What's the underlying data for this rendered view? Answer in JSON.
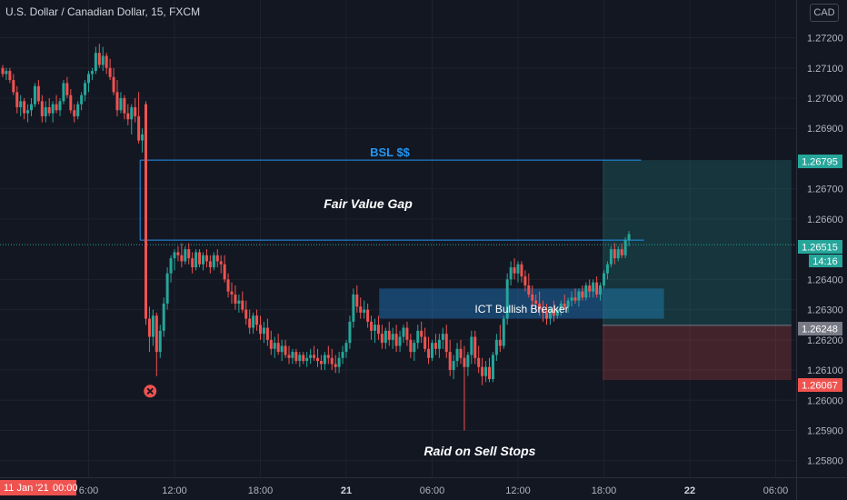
{
  "header": {
    "title": "U.S. Dollar / Canadian Dollar, 15, FXCM",
    "currency_button": "CAD"
  },
  "chart_data": {
    "type": "candlestick",
    "symbol": "U.S. Dollar / Canadian Dollar",
    "interval": "15",
    "source": "FXCM",
    "currency": "CAD",
    "ylim": [
      1.25745,
      1.27325
    ],
    "y_ticks": [
      "1.27200",
      "1.27100",
      "1.27000",
      "1.26900",
      "1.26700",
      "1.26600",
      "1.26400",
      "1.26300",
      "1.26200",
      "1.26100",
      "1.26000",
      "1.25900",
      "1.25800"
    ],
    "x_ticks": [
      {
        "label": "6:00",
        "x_hour": 6,
        "bold": false
      },
      {
        "label": "12:00",
        "x_hour": 12,
        "bold": false
      },
      {
        "label": "18:00",
        "x_hour": 18,
        "bold": false
      },
      {
        "label": "21",
        "x_hour": 24,
        "bold": true
      },
      {
        "label": "06:00",
        "x_hour": 30,
        "bold": false
      },
      {
        "label": "12:00",
        "x_hour": 36,
        "bold": false
      },
      {
        "label": "18:00",
        "x_hour": 42,
        "bold": false
      },
      {
        "label": "22",
        "x_hour": 48,
        "bold": true
      },
      {
        "label": "06:00",
        "x_hour": 54,
        "bold": false
      }
    ],
    "x_start_label": "11 Jan '21",
    "x_start_time": "00:00",
    "last_price": "1.26515",
    "countdown": "14:16",
    "price_badges": [
      {
        "label": "1.26795",
        "value": 1.26795,
        "color": "#26a69a"
      },
      {
        "label": "1.26248",
        "value": 1.26248,
        "color": "#787b86"
      },
      {
        "label": "1.26067",
        "value": 1.26067,
        "color": "#ef5350"
      }
    ],
    "levels": [
      {
        "value": 1.26795,
        "from_hour": 9.6,
        "to_hour": 44.6,
        "label": "BSL $$"
      },
      {
        "value": 1.2653,
        "from_hour": 9.6,
        "to_hour": 44.8,
        "label": "Fair Value Gap"
      }
    ],
    "zones": [
      {
        "label": "ICT Bullish Breaker",
        "top": 1.2637,
        "bottom": 1.2627,
        "from_hour": 26.3,
        "to_hour": 46.2
      },
      {
        "label": "",
        "kind": "target",
        "top": 1.26795,
        "bottom": 1.26248,
        "from_hour": 41.9,
        "to_hour": 55.1
      },
      {
        "label": "",
        "kind": "stop",
        "top": 1.26248,
        "bottom": 1.26067,
        "from_hour": 41.9,
        "to_hour": 55.1
      }
    ],
    "annotations": [
      {
        "label": "BSL $$"
      },
      {
        "label": "Fair Value Gap"
      },
      {
        "label": "Raid on Sell Stops"
      }
    ],
    "raid_marker": {
      "x_hour": 10.3,
      "value": 1.2603
    },
    "candles": [
      [
        0.0,
        1.271,
        1.2711,
        1.2707,
        1.2708
      ],
      [
        0.25,
        1.2708,
        1.271,
        1.2706,
        1.2709
      ],
      [
        0.5,
        1.2709,
        1.271,
        1.2705,
        1.2706
      ],
      [
        0.75,
        1.2706,
        1.2708,
        1.2701,
        1.2702
      ],
      [
        1.0,
        1.2702,
        1.2704,
        1.2695,
        1.2697
      ],
      [
        1.25,
        1.2697,
        1.2701,
        1.2694,
        1.2699
      ],
      [
        1.5,
        1.2699,
        1.27,
        1.2693,
        1.2695
      ],
      [
        1.75,
        1.2695,
        1.2698,
        1.2692,
        1.2696
      ],
      [
        2.0,
        1.2696,
        1.27,
        1.2694,
        1.2698
      ],
      [
        2.25,
        1.2698,
        1.2705,
        1.2697,
        1.2704
      ],
      [
        2.5,
        1.2704,
        1.2706,
        1.2698,
        1.2699
      ],
      [
        2.75,
        1.2699,
        1.2701,
        1.2692,
        1.2694
      ],
      [
        3.0,
        1.2694,
        1.2699,
        1.2692,
        1.2697
      ],
      [
        3.25,
        1.2697,
        1.27,
        1.2694,
        1.2695
      ],
      [
        3.5,
        1.2695,
        1.2699,
        1.2692,
        1.2698
      ],
      [
        3.75,
        1.2698,
        1.2701,
        1.2695,
        1.2696
      ],
      [
        4.0,
        1.2696,
        1.27,
        1.2694,
        1.2699
      ],
      [
        4.25,
        1.2699,
        1.2706,
        1.2698,
        1.2705
      ],
      [
        4.5,
        1.2705,
        1.2707,
        1.27,
        1.2701
      ],
      [
        4.75,
        1.2701,
        1.2703,
        1.2695,
        1.2696
      ],
      [
        5.0,
        1.2696,
        1.2698,
        1.2692,
        1.2694
      ],
      [
        5.25,
        1.2694,
        1.2699,
        1.2693,
        1.2698
      ],
      [
        5.5,
        1.2698,
        1.2702,
        1.2696,
        1.2701
      ],
      [
        5.75,
        1.2701,
        1.2706,
        1.2699,
        1.2705
      ],
      [
        6.0,
        1.2705,
        1.2709,
        1.2702,
        1.2708
      ],
      [
        6.25,
        1.2708,
        1.271,
        1.2706,
        1.2709
      ],
      [
        6.5,
        1.2709,
        1.2717,
        1.2708,
        1.2715
      ],
      [
        6.75,
        1.2715,
        1.2718,
        1.271,
        1.2711
      ],
      [
        7.0,
        1.2711,
        1.2717,
        1.2709,
        1.2714
      ],
      [
        7.25,
        1.2714,
        1.2715,
        1.2708,
        1.271
      ],
      [
        7.5,
        1.271,
        1.2713,
        1.2706,
        1.2707
      ],
      [
        7.75,
        1.2707,
        1.271,
        1.2701,
        1.2702
      ],
      [
        8.0,
        1.2702,
        1.2706,
        1.2694,
        1.2696
      ],
      [
        8.25,
        1.2696,
        1.2702,
        1.2695,
        1.27
      ],
      [
        8.5,
        1.27,
        1.2701,
        1.2693,
        1.2695
      ],
      [
        8.75,
        1.2695,
        1.2698,
        1.2691,
        1.2693
      ],
      [
        9.0,
        1.2693,
        1.2698,
        1.2688,
        1.2697
      ],
      [
        9.25,
        1.2697,
        1.27,
        1.2692,
        1.2694
      ],
      [
        9.5,
        1.2694,
        1.2702,
        1.2685,
        1.2686
      ],
      [
        9.75,
        1.2686,
        1.269,
        1.2682,
        1.2688
      ],
      [
        10.0,
        1.2698,
        1.2699,
        1.2625,
        1.2627
      ],
      [
        10.25,
        1.2627,
        1.2631,
        1.2616,
        1.2621
      ],
      [
        10.5,
        1.2621,
        1.263,
        1.2618,
        1.2628
      ],
      [
        10.75,
        1.2628,
        1.2629,
        1.2608,
        1.2616
      ],
      [
        11.0,
        1.2616,
        1.2625,
        1.2614,
        1.2623
      ],
      [
        11.25,
        1.2623,
        1.2634,
        1.2621,
        1.2632
      ],
      [
        11.5,
        1.2632,
        1.2644,
        1.263,
        1.2642
      ],
      [
        11.75,
        1.2642,
        1.2648,
        1.2639,
        1.2647
      ],
      [
        12.0,
        1.2647,
        1.265,
        1.2643,
        1.2649
      ],
      [
        12.25,
        1.2649,
        1.2651,
        1.2646,
        1.2648
      ],
      [
        12.5,
        1.2648,
        1.2652,
        1.2644,
        1.2646
      ],
      [
        12.75,
        1.2646,
        1.2651,
        1.2645,
        1.265
      ],
      [
        13.0,
        1.265,
        1.2652,
        1.2645,
        1.2647
      ],
      [
        13.25,
        1.2647,
        1.2649,
        1.2642,
        1.2644
      ],
      [
        13.5,
        1.2644,
        1.265,
        1.2643,
        1.2649
      ],
      [
        13.75,
        1.2649,
        1.265,
        1.2644,
        1.2645
      ],
      [
        14.0,
        1.2645,
        1.2649,
        1.2643,
        1.2648
      ],
      [
        14.25,
        1.2648,
        1.265,
        1.2644,
        1.2646
      ],
      [
        14.5,
        1.2646,
        1.2648,
        1.2642,
        1.2644
      ],
      [
        14.75,
        1.2644,
        1.2649,
        1.2643,
        1.2648
      ],
      [
        15.0,
        1.2648,
        1.265,
        1.2644,
        1.2646
      ],
      [
        15.25,
        1.2646,
        1.2648,
        1.2642,
        1.2645
      ],
      [
        15.5,
        1.2645,
        1.2648,
        1.2639,
        1.264
      ],
      [
        15.75,
        1.264,
        1.2642,
        1.2634,
        1.2636
      ],
      [
        16.0,
        1.2636,
        1.2639,
        1.2632,
        1.2635
      ],
      [
        16.25,
        1.2635,
        1.2638,
        1.263,
        1.2632
      ],
      [
        16.5,
        1.2632,
        1.2635,
        1.2629,
        1.2633
      ],
      [
        16.75,
        1.2633,
        1.2636,
        1.2629,
        1.263
      ],
      [
        17.0,
        1.263,
        1.2633,
        1.2625,
        1.2627
      ],
      [
        17.25,
        1.2627,
        1.263,
        1.2622,
        1.2624
      ],
      [
        17.5,
        1.2624,
        1.2629,
        1.2622,
        1.2628
      ],
      [
        17.75,
        1.2628,
        1.263,
        1.2623,
        1.2625
      ],
      [
        18.0,
        1.2625,
        1.2628,
        1.262,
        1.2622
      ],
      [
        18.25,
        1.2622,
        1.2626,
        1.2619,
        1.2624
      ],
      [
        18.5,
        1.2624,
        1.2627,
        1.2618,
        1.262
      ],
      [
        18.75,
        1.262,
        1.2623,
        1.2615,
        1.2617
      ],
      [
        19.0,
        1.2617,
        1.2621,
        1.2614,
        1.2619
      ],
      [
        19.25,
        1.2619,
        1.2622,
        1.2615,
        1.2616
      ],
      [
        19.5,
        1.2616,
        1.262,
        1.2613,
        1.2618
      ],
      [
        19.75,
        1.2618,
        1.262,
        1.2614,
        1.2615
      ],
      [
        20.0,
        1.2615,
        1.2618,
        1.2612,
        1.2614
      ],
      [
        20.25,
        1.2614,
        1.2617,
        1.2612,
        1.2616
      ],
      [
        20.5,
        1.2616,
        1.2617,
        1.2612,
        1.2613
      ],
      [
        20.75,
        1.2613,
        1.2616,
        1.2611,
        1.2615
      ],
      [
        21.0,
        1.2615,
        1.2616,
        1.2612,
        1.2613
      ],
      [
        21.25,
        1.2613,
        1.2616,
        1.2611,
        1.2614
      ],
      [
        21.5,
        1.2614,
        1.2617,
        1.2612,
        1.2615
      ],
      [
        21.75,
        1.2615,
        1.2618,
        1.2613,
        1.2614
      ],
      [
        22.0,
        1.2614,
        1.2617,
        1.2611,
        1.2613
      ],
      [
        22.25,
        1.2613,
        1.2615,
        1.261,
        1.2612
      ],
      [
        22.5,
        1.2612,
        1.2616,
        1.261,
        1.2615
      ],
      [
        22.75,
        1.2615,
        1.2618,
        1.2612,
        1.2614
      ],
      [
        23.0,
        1.2614,
        1.2617,
        1.261,
        1.2612
      ],
      [
        23.25,
        1.2612,
        1.2615,
        1.2609,
        1.2611
      ],
      [
        23.5,
        1.2611,
        1.2616,
        1.2609,
        1.2614
      ],
      [
        23.75,
        1.2614,
        1.2618,
        1.2612,
        1.2616
      ],
      [
        24.0,
        1.2616,
        1.262,
        1.2614,
        1.2619
      ],
      [
        24.25,
        1.2619,
        1.2628,
        1.2617,
        1.2626
      ],
      [
        24.5,
        1.2626,
        1.2637,
        1.2624,
        1.2635
      ],
      [
        24.75,
        1.2635,
        1.2638,
        1.2629,
        1.2631
      ],
      [
        25.0,
        1.2631,
        1.2634,
        1.2627,
        1.2629
      ],
      [
        25.25,
        1.2629,
        1.2633,
        1.2627,
        1.263
      ],
      [
        25.5,
        1.263,
        1.2632,
        1.2624,
        1.2626
      ],
      [
        25.75,
        1.2626,
        1.2628,
        1.262,
        1.2623
      ],
      [
        26.0,
        1.2623,
        1.2627,
        1.2619,
        1.2625
      ],
      [
        26.25,
        1.2625,
        1.2628,
        1.262,
        1.2622
      ],
      [
        26.5,
        1.2622,
        1.2625,
        1.2617,
        1.2619
      ],
      [
        26.75,
        1.2619,
        1.2624,
        1.2617,
        1.2623
      ],
      [
        27.0,
        1.2623,
        1.2626,
        1.2618,
        1.262
      ],
      [
        27.25,
        1.262,
        1.2624,
        1.2617,
        1.2622
      ],
      [
        27.5,
        1.2622,
        1.2625,
        1.2616,
        1.2618
      ],
      [
        27.75,
        1.2618,
        1.2623,
        1.2616,
        1.2621
      ],
      [
        28.0,
        1.2621,
        1.2625,
        1.2619,
        1.2624
      ],
      [
        28.25,
        1.2624,
        1.2626,
        1.2618,
        1.262
      ],
      [
        28.5,
        1.262,
        1.2622,
        1.2614,
        1.2616
      ],
      [
        28.75,
        1.2616,
        1.262,
        1.2613,
        1.2619
      ],
      [
        29.0,
        1.2619,
        1.2625,
        1.2617,
        1.2623
      ],
      [
        29.25,
        1.2623,
        1.2626,
        1.2619,
        1.2621
      ],
      [
        29.5,
        1.2621,
        1.2624,
        1.2616,
        1.2617
      ],
      [
        29.75,
        1.2617,
        1.2621,
        1.2612,
        1.2614
      ],
      [
        30.0,
        1.2614,
        1.262,
        1.2613,
        1.2619
      ],
      [
        30.25,
        1.2619,
        1.2622,
        1.2615,
        1.2617
      ],
      [
        30.5,
        1.2617,
        1.2622,
        1.2614,
        1.262
      ],
      [
        30.75,
        1.262,
        1.2624,
        1.2617,
        1.2622
      ],
      [
        31.0,
        1.2622,
        1.2625,
        1.2614,
        1.2616
      ],
      [
        31.25,
        1.2616,
        1.262,
        1.2608,
        1.261
      ],
      [
        31.5,
        1.261,
        1.2615,
        1.2607,
        1.2613
      ],
      [
        31.75,
        1.2613,
        1.2619,
        1.2611,
        1.2617
      ],
      [
        32.0,
        1.2617,
        1.262,
        1.2612,
        1.2614
      ],
      [
        32.25,
        1.2614,
        1.2618,
        1.259,
        1.2611
      ],
      [
        32.5,
        1.2611,
        1.2616,
        1.2608,
        1.2615
      ],
      [
        32.75,
        1.2615,
        1.2623,
        1.2612,
        1.2621
      ],
      [
        33.0,
        1.2621,
        1.2623,
        1.2612,
        1.2614
      ],
      [
        33.25,
        1.2614,
        1.2618,
        1.2609,
        1.2611
      ],
      [
        33.5,
        1.2611,
        1.2614,
        1.2605,
        1.2608
      ],
      [
        33.75,
        1.2608,
        1.2613,
        1.2606,
        1.2611
      ],
      [
        34.0,
        1.2611,
        1.2614,
        1.2606,
        1.2607
      ],
      [
        34.25,
        1.2607,
        1.2616,
        1.2606,
        1.2615
      ],
      [
        34.5,
        1.2615,
        1.2622,
        1.2613,
        1.262
      ],
      [
        34.75,
        1.262,
        1.2625,
        1.2616,
        1.2618
      ],
      [
        35.0,
        1.2618,
        1.2628,
        1.2617,
        1.2627
      ],
      [
        35.25,
        1.2627,
        1.2642,
        1.2625,
        1.264
      ],
      [
        35.5,
        1.264,
        1.2646,
        1.2638,
        1.2644
      ],
      [
        35.75,
        1.2644,
        1.2647,
        1.264,
        1.2642
      ],
      [
        36.0,
        1.2642,
        1.2646,
        1.2639,
        1.2645
      ],
      [
        36.25,
        1.2645,
        1.2646,
        1.2639,
        1.2641
      ],
      [
        36.5,
        1.2641,
        1.2643,
        1.2636,
        1.2638
      ],
      [
        36.75,
        1.2638,
        1.2642,
        1.2634,
        1.2635
      ],
      [
        37.0,
        1.2635,
        1.2638,
        1.2631,
        1.2633
      ],
      [
        37.25,
        1.2633,
        1.2635,
        1.2629,
        1.2632
      ],
      [
        37.5,
        1.2632,
        1.2636,
        1.2628,
        1.263
      ],
      [
        37.75,
        1.263,
        1.2633,
        1.2626,
        1.2629
      ],
      [
        38.0,
        1.2629,
        1.2632,
        1.2625,
        1.2627
      ],
      [
        38.25,
        1.2627,
        1.2631,
        1.2625,
        1.263
      ],
      [
        38.5,
        1.263,
        1.2633,
        1.2626,
        1.2628
      ],
      [
        38.75,
        1.2628,
        1.2631,
        1.2627,
        1.263
      ],
      [
        39.0,
        1.263,
        1.2633,
        1.2628,
        1.2632
      ],
      [
        39.25,
        1.2632,
        1.2635,
        1.263,
        1.2631
      ],
      [
        39.5,
        1.2631,
        1.2634,
        1.2629,
        1.2633
      ],
      [
        39.75,
        1.2633,
        1.2636,
        1.2631,
        1.2634
      ],
      [
        40.0,
        1.2634,
        1.2637,
        1.2632,
        1.2633
      ],
      [
        40.25,
        1.2633,
        1.2637,
        1.2631,
        1.2636
      ],
      [
        40.5,
        1.2636,
        1.2638,
        1.2633,
        1.2634
      ],
      [
        40.75,
        1.2634,
        1.2639,
        1.2633,
        1.2638
      ],
      [
        41.0,
        1.2638,
        1.264,
        1.2634,
        1.2636
      ],
      [
        41.25,
        1.2636,
        1.264,
        1.2634,
        1.2639
      ],
      [
        41.5,
        1.2639,
        1.2641,
        1.2634,
        1.2635
      ],
      [
        41.75,
        1.2635,
        1.2639,
        1.2633,
        1.2638
      ],
      [
        42.0,
        1.2638,
        1.2643,
        1.2637,
        1.2642
      ],
      [
        42.25,
        1.2642,
        1.2646,
        1.264,
        1.2645
      ],
      [
        42.5,
        1.2645,
        1.2651,
        1.2644,
        1.265
      ],
      [
        42.75,
        1.265,
        1.2652,
        1.2645,
        1.2647
      ],
      [
        43.0,
        1.2647,
        1.2651,
        1.2646,
        1.265
      ],
      [
        43.25,
        1.265,
        1.2652,
        1.2647,
        1.2648
      ],
      [
        43.5,
        1.2648,
        1.2654,
        1.2647,
        1.2653
      ],
      [
        43.75,
        1.2653,
        1.2656,
        1.2651,
        1.2655
      ]
    ]
  }
}
